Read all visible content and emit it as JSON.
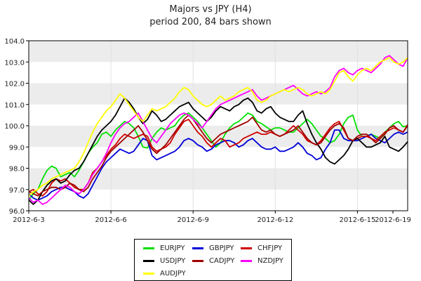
{
  "chart_data": {
    "type": "line",
    "title": "Majors vs JPY (H4)",
    "subtitle": "period 200, 84 bars shown",
    "xlabel": "",
    "ylabel": "",
    "ylim": [
      96.0,
      104.0
    ],
    "yticks": [
      "96.0",
      "97.0",
      "98.0",
      "99.0",
      "100.0",
      "101.0",
      "102.0",
      "103.0",
      "104.0"
    ],
    "xlim": [
      0,
      83
    ],
    "xticks": [
      {
        "x": 0,
        "label": "2012-6-3"
      },
      {
        "x": 18,
        "label": "2012-6-6"
      },
      {
        "x": 36,
        "label": "2012-6-9"
      },
      {
        "x": 54,
        "label": "2012-6-12"
      },
      {
        "x": 72,
        "label": "2012-6-15"
      },
      {
        "x": 90,
        "label": "2012-6-19"
      }
    ],
    "grid": "horizontal bands",
    "legend_position": "bottom",
    "series": [
      {
        "name": "EURJPY",
        "color": "#00e000",
        "values": [
          96.5,
          96.8,
          97.0,
          97.5,
          97.9,
          98.1,
          98.0,
          97.6,
          97.7,
          97.8,
          97.6,
          97.9,
          98.3,
          98.7,
          99.0,
          99.2,
          99.6,
          99.7,
          99.5,
          99.8,
          100.0,
          100.2,
          100.1,
          99.9,
          99.5,
          99.0,
          98.95,
          99.4,
          99.7,
          99.9,
          99.8,
          99.9,
          100.0,
          100.3,
          100.5,
          100.6,
          100.4,
          100.2,
          99.9,
          99.6,
          99.3,
          99.0,
          99.2,
          99.6,
          99.9,
          100.1,
          100.2,
          100.4,
          100.6,
          100.5,
          100.2,
          100.1,
          99.95,
          99.8,
          99.9,
          99.9,
          99.8,
          99.7,
          99.7,
          99.9,
          100.1,
          100.3,
          100.1,
          99.8,
          99.5,
          99.4,
          99.2,
          99.3,
          99.6,
          100.1,
          100.4,
          100.5,
          99.8,
          99.5,
          99.5,
          99.6,
          99.5,
          99.4,
          99.7,
          99.9,
          100.1,
          100.2,
          99.95,
          100.0
        ]
      },
      {
        "name": "GBPJPY",
        "color": "#0000d8",
        "values": [
          96.8,
          96.6,
          96.5,
          96.6,
          96.7,
          96.9,
          97.0,
          97.1,
          97.1,
          97.0,
          96.9,
          96.7,
          96.6,
          96.8,
          97.2,
          97.6,
          98.0,
          98.3,
          98.5,
          98.7,
          98.9,
          98.8,
          98.7,
          98.8,
          99.1,
          99.4,
          99.3,
          98.6,
          98.4,
          98.5,
          98.6,
          98.7,
          98.8,
          99.0,
          99.3,
          99.4,
          99.3,
          99.1,
          99.0,
          98.8,
          98.9,
          99.1,
          99.2,
          99.3,
          99.3,
          99.2,
          99.0,
          99.1,
          99.3,
          99.4,
          99.2,
          99.0,
          98.9,
          98.9,
          99.0,
          98.8,
          98.8,
          98.9,
          99.0,
          99.2,
          99.0,
          98.7,
          98.6,
          98.4,
          98.5,
          98.9,
          99.2,
          99.8,
          99.8,
          99.4,
          99.3,
          99.3,
          99.3,
          99.4,
          99.5,
          99.6,
          99.4,
          99.3,
          99.2,
          99.4,
          99.6,
          99.7,
          99.6,
          99.7
        ]
      },
      {
        "name": "CHFJPY",
        "color": "#d00000",
        "values": [
          96.9,
          97.0,
          96.8,
          96.7,
          96.9,
          97.3,
          97.5,
          97.4,
          97.5,
          97.3,
          97.1,
          97.0,
          97.0,
          97.3,
          97.8,
          98.0,
          98.3,
          98.6,
          98.9,
          99.1,
          99.4,
          99.6,
          99.5,
          99.4,
          99.5,
          99.6,
          99.5,
          99.0,
          98.8,
          98.9,
          99.0,
          99.2,
          99.6,
          99.9,
          100.2,
          100.3,
          100.0,
          99.7,
          99.5,
          99.2,
          99.0,
          99.2,
          99.4,
          99.3,
          99.0,
          99.1,
          99.2,
          99.4,
          99.5,
          99.6,
          99.7,
          99.6,
          99.6,
          99.7,
          99.6,
          99.5,
          99.6,
          99.8,
          100.0,
          99.8,
          99.6,
          99.3,
          99.2,
          99.1,
          99.3,
          99.6,
          99.9,
          100.1,
          100.2,
          99.8,
          99.4,
          99.3,
          99.4,
          99.5,
          99.5,
          99.4,
          99.3,
          99.5,
          99.7,
          99.8,
          99.9,
          99.8,
          99.7,
          100.05
        ]
      },
      {
        "name": "USDJPY",
        "color": "#000000",
        "values": [
          96.5,
          96.3,
          96.5,
          96.9,
          97.2,
          97.4,
          97.5,
          97.3,
          97.4,
          97.7,
          97.9,
          98.0,
          98.3,
          98.7,
          99.1,
          99.5,
          99.8,
          100.0,
          100.2,
          100.5,
          100.9,
          101.3,
          101.1,
          100.8,
          100.4,
          100.1,
          100.3,
          100.7,
          100.5,
          100.2,
          100.3,
          100.5,
          100.7,
          100.9,
          101.0,
          101.1,
          100.8,
          100.6,
          100.4,
          100.2,
          100.4,
          100.7,
          100.9,
          100.8,
          100.7,
          100.9,
          101.0,
          101.2,
          101.3,
          101.1,
          100.7,
          100.6,
          100.8,
          100.9,
          100.6,
          100.4,
          100.3,
          100.2,
          100.2,
          100.5,
          100.7,
          100.1,
          99.6,
          99.2,
          98.9,
          98.5,
          98.3,
          98.2,
          98.4,
          98.6,
          98.9,
          99.3,
          99.4,
          99.2,
          99.0,
          99.0,
          99.1,
          99.2,
          99.5,
          99.0,
          98.9,
          98.8,
          99.0,
          99.25
        ]
      },
      {
        "name": "CADJPY",
        "color": "#a00000",
        "values": [
          96.9,
          96.8,
          96.7,
          96.9,
          97.0,
          97.1,
          97.1,
          97.0,
          97.1,
          97.3,
          97.2,
          97.0,
          96.9,
          97.1,
          97.5,
          97.8,
          98.1,
          98.5,
          98.8,
          99.0,
          99.2,
          99.4,
          99.6,
          99.8,
          100.0,
          99.7,
          99.3,
          98.9,
          98.7,
          98.9,
          99.1,
          99.4,
          99.7,
          100.0,
          100.3,
          100.5,
          100.3,
          100.0,
          99.7,
          99.4,
          99.2,
          99.4,
          99.6,
          99.7,
          99.8,
          99.9,
          100.0,
          100.1,
          100.2,
          100.4,
          100.1,
          99.8,
          99.7,
          99.8,
          99.6,
          99.5,
          99.6,
          99.7,
          99.8,
          100.0,
          99.7,
          99.4,
          99.2,
          99.1,
          99.2,
          99.5,
          99.8,
          100.0,
          100.1,
          99.9,
          99.4,
          99.3,
          99.5,
          99.6,
          99.6,
          99.4,
          99.2,
          99.4,
          99.6,
          99.9,
          100.0,
          99.8,
          99.7,
          100.0
        ]
      },
      {
        "name": "NZDJPY",
        "color": "#ff00ff",
        "values": [
          96.6,
          96.4,
          96.5,
          96.3,
          96.4,
          96.6,
          96.8,
          97.0,
          97.2,
          97.1,
          96.9,
          96.8,
          97.0,
          97.3,
          97.7,
          98.0,
          98.3,
          98.7,
          99.2,
          99.6,
          99.9,
          100.1,
          100.2,
          100.4,
          100.6,
          100.2,
          99.8,
          99.4,
          99.2,
          99.5,
          99.8,
          100.1,
          100.3,
          100.5,
          100.6,
          100.5,
          100.3,
          100.1,
          99.9,
          100.2,
          100.5,
          100.8,
          101.0,
          101.1,
          101.2,
          101.3,
          101.4,
          101.5,
          101.6,
          101.7,
          101.4,
          101.2,
          101.3,
          101.4,
          101.5,
          101.6,
          101.7,
          101.8,
          101.9,
          101.7,
          101.5,
          101.4,
          101.5,
          101.6,
          101.5,
          101.6,
          101.8,
          102.3,
          102.6,
          102.7,
          102.5,
          102.4,
          102.6,
          102.7,
          102.6,
          102.5,
          102.7,
          102.9,
          103.2,
          103.3,
          103.1,
          102.9,
          102.8,
          103.2
        ]
      },
      {
        "name": "AUDJPY",
        "color": "#ffff00",
        "values": [
          96.7,
          96.9,
          97.0,
          97.2,
          97.3,
          97.5,
          97.6,
          97.7,
          97.8,
          97.9,
          98.0,
          98.3,
          98.7,
          99.2,
          99.7,
          100.1,
          100.4,
          100.7,
          100.9,
          101.2,
          101.5,
          101.3,
          101.0,
          100.7,
          100.4,
          100.2,
          100.5,
          100.8,
          100.7,
          100.8,
          100.9,
          101.1,
          101.3,
          101.6,
          101.8,
          101.7,
          101.4,
          101.2,
          101.0,
          100.9,
          101.0,
          101.2,
          101.4,
          101.2,
          101.3,
          101.4,
          101.6,
          101.7,
          101.8,
          101.6,
          101.2,
          101.1,
          101.2,
          101.4,
          101.5,
          101.6,
          101.7,
          101.6,
          101.7,
          101.8,
          101.7,
          101.5,
          101.4,
          101.5,
          101.6,
          101.5,
          101.7,
          102.1,
          102.5,
          102.6,
          102.3,
          102.1,
          102.4,
          102.6,
          102.7,
          102.6,
          102.8,
          103.0,
          103.1,
          103.2,
          103.0,
          102.9,
          103.0,
          103.2
        ]
      }
    ]
  },
  "legend": [
    {
      "name": "EURJPY",
      "color": "#00e000"
    },
    {
      "name": "GBPJPY",
      "color": "#0000d8"
    },
    {
      "name": "CHFJPY",
      "color": "#d00000"
    },
    {
      "name": "USDJPY",
      "color": "#000000"
    },
    {
      "name": "CADJPY",
      "color": "#a00000"
    },
    {
      "name": "NZDJPY",
      "color": "#ff00ff"
    },
    {
      "name": "AUDJPY",
      "color": "#ffff00"
    }
  ]
}
